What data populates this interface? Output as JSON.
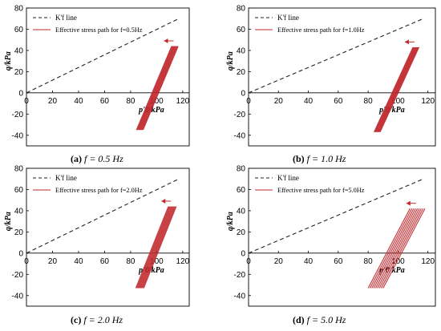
{
  "figure": {
    "captions": [
      {
        "letter": "(a)",
        "text": "f = 0.5 Hz"
      },
      {
        "letter": "(b)",
        "text": "f = 1.0 Hz"
      },
      {
        "letter": "(c)",
        "text": "f = 2.0 Hz"
      },
      {
        "letter": "(d)",
        "text": "f = 5.0 Hz"
      }
    ]
  },
  "colors": {
    "path": "#c0282d",
    "line": "#222222",
    "axis": "#000000"
  },
  "chart_data": [
    {
      "type": "line",
      "ylabel": "q/kPa",
      "xlabel": "p'0/kPa",
      "xlim": [
        0,
        125
      ],
      "ylim": [
        -50,
        80
      ],
      "xticks": [
        0,
        20,
        40,
        60,
        80,
        100,
        120
      ],
      "yticks": [
        -40,
        -20,
        0,
        20,
        40,
        60,
        80
      ],
      "legend": [
        "K'f line",
        "Effective stress path for f=0.5Hz"
      ],
      "series": [
        {
          "name": "K'f line",
          "style": "dashed",
          "x": [
            0,
            117
          ],
          "y": [
            0,
            70
          ]
        },
        {
          "name": "Effective stress path for f=0.5Hz",
          "x": [
            87,
            114
          ],
          "y": [
            -35,
            44
          ],
          "band": 5
        }
      ]
    },
    {
      "type": "line",
      "ylabel": "q/kPa",
      "xlabel": "p'0/kPa",
      "xlim": [
        0,
        125
      ],
      "ylim": [
        -50,
        80
      ],
      "xticks": [
        0,
        20,
        40,
        60,
        80,
        100,
        120
      ],
      "yticks": [
        -40,
        -20,
        0,
        20,
        40,
        60,
        80
      ],
      "legend": [
        "K'f line",
        "Effective stress path for f=1.0Hz"
      ],
      "series": [
        {
          "name": "K'f line",
          "style": "dashed",
          "x": [
            0,
            117
          ],
          "y": [
            0,
            70
          ]
        },
        {
          "name": "Effective stress path for f=1.0Hz",
          "x": [
            86,
            112
          ],
          "y": [
            -37,
            43
          ],
          "band": 4
        }
      ]
    },
    {
      "type": "line",
      "ylabel": "q/kPa",
      "xlabel": "p'0/kPa",
      "xlim": [
        0,
        125
      ],
      "ylim": [
        -50,
        80
      ],
      "xticks": [
        0,
        20,
        40,
        60,
        80,
        100,
        120
      ],
      "yticks": [
        -40,
        -20,
        0,
        20,
        40,
        60,
        80
      ],
      "legend": [
        "K'f line",
        "Effective stress path for f=2.0Hz"
      ],
      "series": [
        {
          "name": "K'f line",
          "style": "dashed",
          "x": [
            0,
            117
          ],
          "y": [
            0,
            70
          ]
        },
        {
          "name": "Effective stress path for f=2.0Hz",
          "x": [
            87,
            112
          ],
          "y": [
            -33,
            44
          ],
          "band": 6
        }
      ]
    },
    {
      "type": "line",
      "ylabel": "q/kPa",
      "xlabel": "p'0/kPa",
      "xlim": [
        0,
        125
      ],
      "ylim": [
        -50,
        80
      ],
      "xticks": [
        0,
        20,
        40,
        60,
        80,
        100,
        120
      ],
      "yticks": [
        -40,
        -20,
        0,
        20,
        40,
        60,
        80
      ],
      "legend": [
        "K'f line",
        "Effective stress path for f=5.0Hz"
      ],
      "series": [
        {
          "name": "K'f line",
          "style": "dashed",
          "x": [
            0,
            117
          ],
          "y": [
            0,
            70
          ]
        },
        {
          "name": "Effective stress path for f=5.0Hz",
          "x": [
            85,
            113
          ],
          "y": [
            -33,
            42
          ],
          "band": 10
        }
      ]
    }
  ]
}
